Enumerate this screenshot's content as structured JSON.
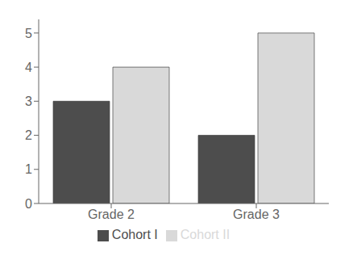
{
  "chart_data": {
    "type": "bar",
    "categories": [
      "Grade 2",
      "Grade 3"
    ],
    "series": [
      {
        "name": "Cohort I",
        "color": "#4d4d4d",
        "values": [
          3,
          2
        ]
      },
      {
        "name": "Cohort II",
        "color": "#d9d9d9",
        "values": [
          4,
          5
        ]
      }
    ],
    "ylim": [
      0,
      5.4
    ],
    "yticks": [
      0,
      1,
      2,
      3,
      4,
      5
    ],
    "grid": false,
    "legend": "bottom"
  }
}
